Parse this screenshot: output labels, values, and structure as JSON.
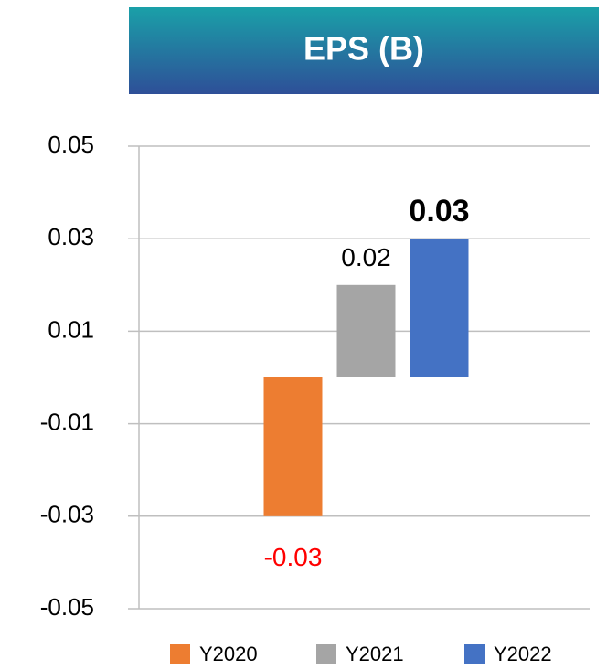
{
  "chart_data": {
    "type": "bar",
    "title": "EPS (B)",
    "categories": [
      null
    ],
    "series": [
      {
        "name": "Y2020",
        "color": "#ed7d31",
        "values": [
          -0.03
        ],
        "label_color": "#ff0000",
        "label_bold": false
      },
      {
        "name": "Y2021",
        "color": "#a5a5a5",
        "values": [
          0.02
        ],
        "label_color": "#000000",
        "label_bold": false
      },
      {
        "name": "Y2022",
        "color": "#4472c4",
        "values": [
          0.03
        ],
        "label_color": "#000000",
        "label_bold": true
      }
    ],
    "ylim": [
      -0.05,
      0.05
    ],
    "yticks": [
      0.05,
      0.03,
      0.01,
      -0.01,
      -0.03,
      -0.05
    ],
    "grid": true,
    "legend": "bottom"
  }
}
